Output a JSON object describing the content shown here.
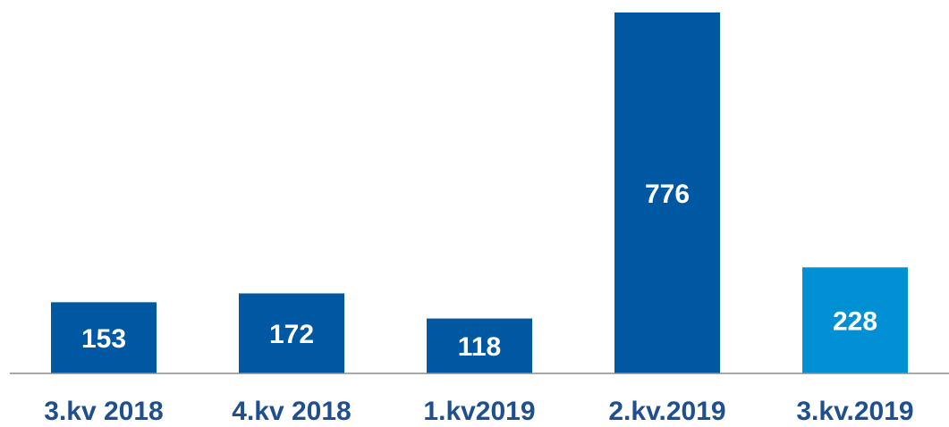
{
  "chart_data": {
    "type": "bar",
    "categories": [
      "3.kv 2018",
      "4.kv 2018",
      "1.kv2019",
      "2.kv.2019",
      "3.kv.2019"
    ],
    "values": [
      153,
      172,
      118,
      776,
      228
    ],
    "colors": [
      "#0058a2",
      "#0058a2",
      "#0058a2",
      "#0058a2",
      "#0090d3"
    ],
    "grid": false
  }
}
